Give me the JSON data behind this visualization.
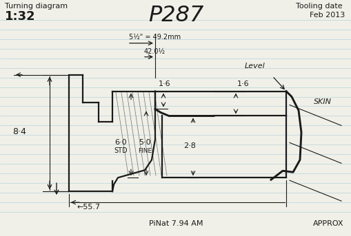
{
  "bg_color": "#f0f0e8",
  "line_color": "#1a1a1a",
  "title_center": "P287",
  "title_left_1": "Turning diagram",
  "title_left_2": "1:32",
  "title_right_1": "Tooling date",
  "title_right_2": "Feb 2013",
  "dim_49_2": "5½\" = 49.2mm",
  "dim_42": "42.0½",
  "label_level": "Level",
  "label_skin": "SKIN",
  "label_8_4": "8·4",
  "label_1_6_left": "1·6",
  "label_1_6_right": "1·6",
  "label_6_0": "6·0",
  "label_std": "STD",
  "label_5_0": "5·0",
  "label_fine": "FINE",
  "label_2_8": "2·8",
  "label_pinat": "PiNat 7.94 AM",
  "label_approx": "APPROX",
  "dim_55_7": "55.7",
  "ruled_lines_color": "#7ab8d4",
  "ruled_lines_alpha": 0.45
}
